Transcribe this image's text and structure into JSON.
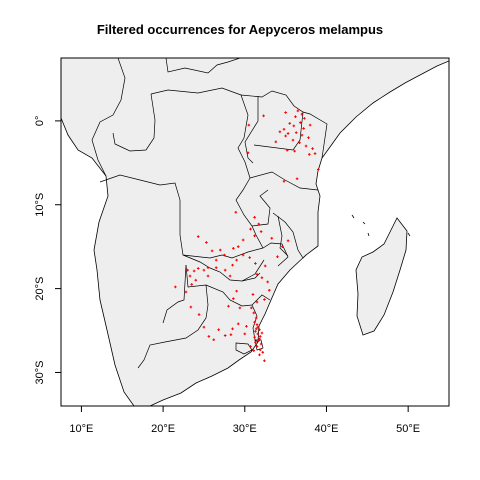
{
  "title": "Filtered occurrences for Aepyceros melampus",
  "colors": {
    "land": "#eeeeee",
    "border": "#000000",
    "points": "#ff0000",
    "ocean": "#ffffff"
  },
  "chart_data": {
    "type": "scatter",
    "title": "Filtered occurrences for Aepyceros melampus",
    "xlim": [
      7.5,
      55
    ],
    "ylim": [
      -34,
      7.5
    ],
    "x_ticks": [
      10,
      20,
      30,
      40,
      50
    ],
    "x_tick_labels": [
      "10°E",
      "20°E",
      "30°E",
      "40°E",
      "50°E"
    ],
    "y_ticks": [
      0,
      -10,
      -20,
      -30
    ],
    "y_tick_labels": [
      "0°",
      "10°S",
      "20°S",
      "30°S"
    ],
    "series": [
      {
        "points": [
          [
            35.0,
            1.0
          ],
          [
            36.5,
            1.2
          ],
          [
            37.0,
            0.8
          ],
          [
            36.2,
            0.5
          ],
          [
            37.3,
            0.3
          ],
          [
            36.8,
            -0.2
          ],
          [
            35.5,
            -0.3
          ],
          [
            36.0,
            -0.6
          ],
          [
            37.2,
            -0.9
          ],
          [
            38.0,
            -0.5
          ],
          [
            34.8,
            -1.0
          ],
          [
            35.3,
            -1.5
          ],
          [
            36.3,
            -1.4
          ],
          [
            37.0,
            -1.7
          ],
          [
            37.8,
            -2.0
          ],
          [
            35.9,
            -2.3
          ],
          [
            36.7,
            -2.6
          ],
          [
            37.5,
            -3.0
          ],
          [
            38.3,
            -3.3
          ],
          [
            35.0,
            -1.8
          ],
          [
            34.3,
            -1.3
          ],
          [
            33.8,
            -2.5
          ],
          [
            35.2,
            -3.5
          ],
          [
            38.6,
            -3.9
          ],
          [
            36.1,
            -3.6
          ],
          [
            37.9,
            -4.0
          ],
          [
            36.4,
            -6.9
          ],
          [
            39.0,
            -5.8
          ],
          [
            34.8,
            -7.2
          ],
          [
            32.3,
            0.6
          ],
          [
            30.5,
            -0.5
          ],
          [
            30.4,
            -3.8
          ],
          [
            31.2,
            -11.5
          ],
          [
            31.7,
            -12.3
          ],
          [
            32.0,
            -13.2
          ],
          [
            31.2,
            -13.7
          ],
          [
            30.7,
            -12.9
          ],
          [
            29.8,
            -14.2
          ],
          [
            29.2,
            -15.0
          ],
          [
            28.6,
            -15.2
          ],
          [
            27.5,
            -16.0
          ],
          [
            27.0,
            -15.4
          ],
          [
            26.0,
            -15.5
          ],
          [
            26.5,
            -16.6
          ],
          [
            25.5,
            -17.5
          ],
          [
            25.0,
            -17.8
          ],
          [
            24.3,
            -17.6
          ],
          [
            23.8,
            -17.9
          ],
          [
            23.0,
            -17.8
          ],
          [
            23.3,
            -18.5
          ],
          [
            24.0,
            -19.0
          ],
          [
            23.5,
            -19.5
          ],
          [
            25.5,
            -18.5
          ],
          [
            26.5,
            -17.5
          ],
          [
            27.6,
            -17.8
          ],
          [
            28.5,
            -17.2
          ],
          [
            29.0,
            -16.6
          ],
          [
            28.2,
            -18.5
          ],
          [
            29.8,
            -16.0
          ],
          [
            30.6,
            -16.3
          ],
          [
            31.3,
            -17.0
          ],
          [
            31.5,
            -18.3
          ],
          [
            32.1,
            -18.7
          ],
          [
            32.8,
            -19.2
          ],
          [
            33.0,
            -20.2
          ],
          [
            32.4,
            -21.3
          ],
          [
            31.5,
            -21.6
          ],
          [
            30.8,
            -22.3
          ],
          [
            31.1,
            -22.9
          ],
          [
            31.4,
            -23.5
          ],
          [
            31.2,
            -24.0
          ],
          [
            31.5,
            -24.3
          ],
          [
            31.6,
            -24.6
          ],
          [
            31.8,
            -24.9
          ],
          [
            31.3,
            -25.1
          ],
          [
            31.6,
            -25.4
          ],
          [
            31.9,
            -25.7
          ],
          [
            31.2,
            -25.8
          ],
          [
            31.7,
            -26.2
          ],
          [
            32.0,
            -26.6
          ],
          [
            31.5,
            -26.9
          ],
          [
            31.9,
            -27.3
          ],
          [
            32.2,
            -27.6
          ],
          [
            30.2,
            -24.5
          ],
          [
            30.0,
            -25.4
          ],
          [
            29.2,
            -24.2
          ],
          [
            28.5,
            -24.8
          ],
          [
            28.3,
            -25.5
          ],
          [
            27.6,
            -25.6
          ],
          [
            26.8,
            -24.9
          ],
          [
            25.6,
            -25.7
          ],
          [
            26.2,
            -26.1
          ],
          [
            25.0,
            -24.6
          ],
          [
            24.4,
            -23.1
          ],
          [
            23.4,
            -22.2
          ],
          [
            22.8,
            -20.4
          ],
          [
            21.5,
            -19.8
          ],
          [
            28.0,
            -22.1
          ],
          [
            29.4,
            -22.3
          ],
          [
            28.6,
            -21.2
          ],
          [
            29.0,
            -20.3
          ],
          [
            31.0,
            -20.7
          ],
          [
            33.3,
            -14.0
          ],
          [
            34.0,
            -16.2
          ],
          [
            34.6,
            -15.0
          ],
          [
            35.3,
            -14.3
          ],
          [
            28.9,
            -10.9
          ],
          [
            25.3,
            -14.5
          ],
          [
            24.3,
            -13.8
          ],
          [
            32.5,
            -17.3
          ],
          [
            30.7,
            -26.9
          ],
          [
            31.8,
            -27.9
          ],
          [
            32.4,
            -28.6
          ],
          [
            31.1,
            -27.4
          ],
          [
            31.3,
            -26.4
          ],
          [
            31.8,
            -26.0
          ],
          [
            32.1,
            -25.3
          ],
          [
            31.4,
            -24.8
          ]
        ]
      }
    ]
  }
}
